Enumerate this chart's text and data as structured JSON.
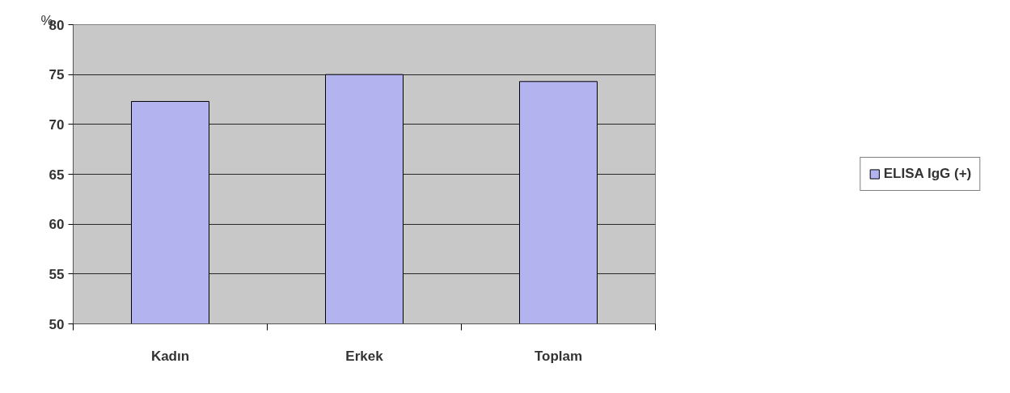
{
  "chart_data": {
    "type": "bar",
    "ylabel": "%",
    "categories": [
      "Kadın",
      "Erkek",
      "Toplam"
    ],
    "series": [
      {
        "name": "ELISA IgG (+)",
        "color": "#b3b3f0",
        "values": [
          72.3,
          75,
          74.3
        ]
      }
    ],
    "ylim": [
      50,
      80
    ],
    "yticks": [
      50,
      55,
      60,
      65,
      70,
      75,
      80
    ],
    "grid": "y",
    "legend": "right"
  }
}
